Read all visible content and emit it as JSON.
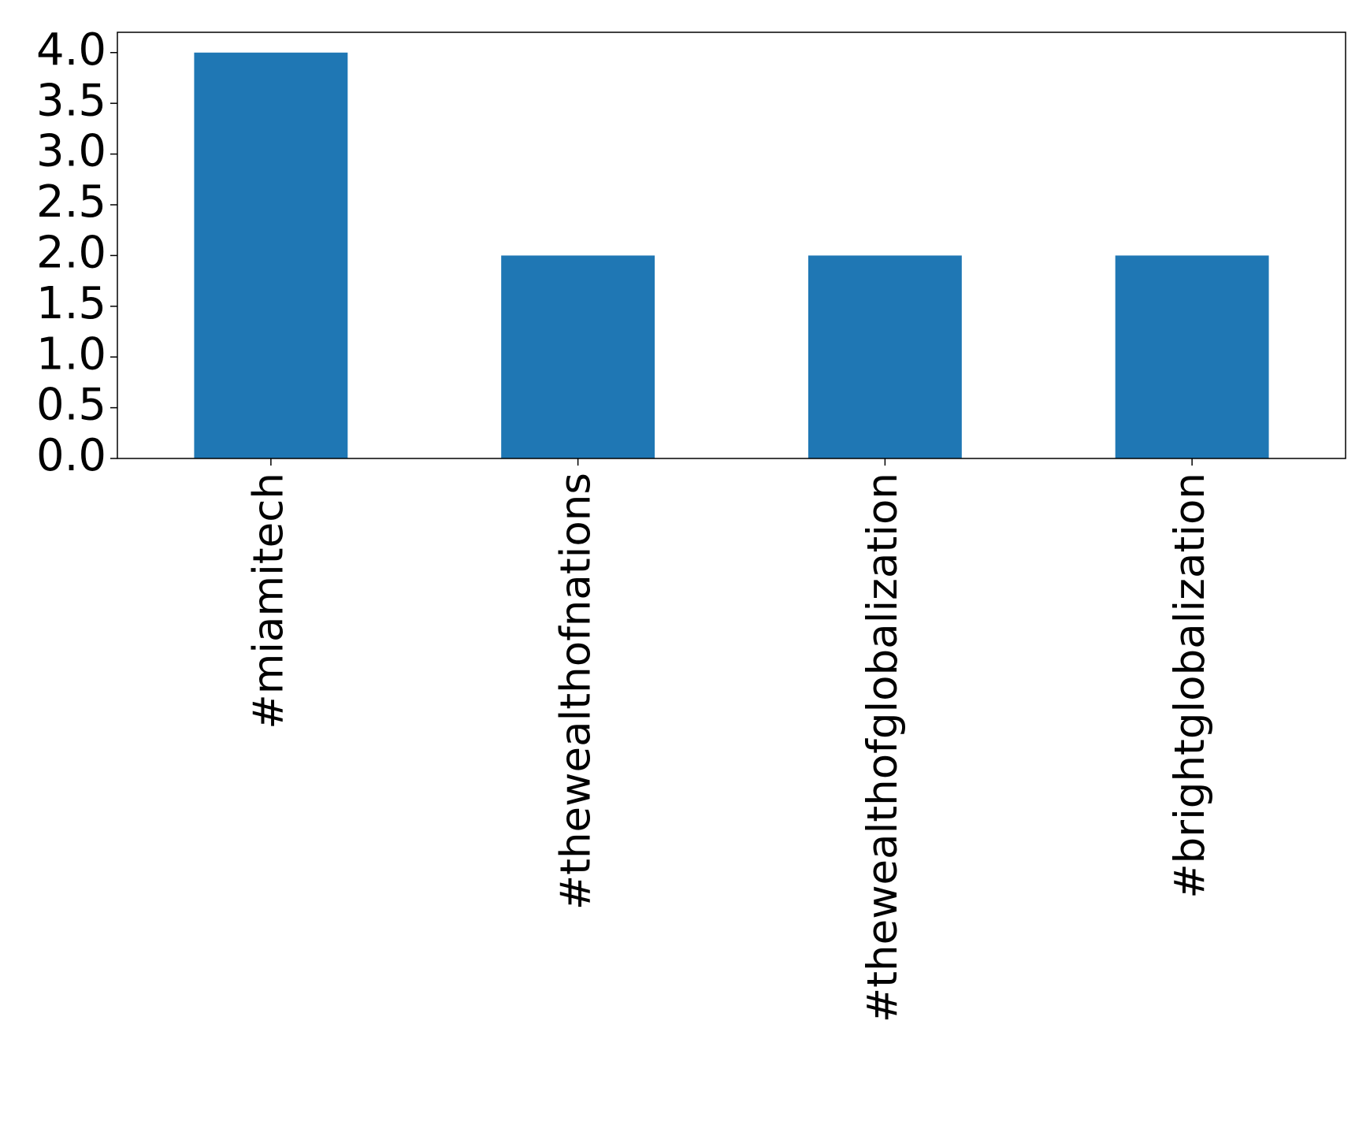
{
  "chart_data": {
    "type": "bar",
    "categories": [
      "#miamitech",
      "#thewealthofnations",
      "#thewealthofglobalization",
      "#brightglobalization"
    ],
    "values": [
      4,
      2,
      2,
      2
    ],
    "color": "#1f77b4",
    "ylim": [
      0,
      4.2
    ],
    "yticks": [
      {
        "value": 0,
        "label": "0.0"
      },
      {
        "value": 0.5,
        "label": "0.5"
      },
      {
        "value": 1,
        "label": "1.0"
      },
      {
        "value": 1.5,
        "label": "1.5"
      },
      {
        "value": 2,
        "label": "2.0"
      },
      {
        "value": 2.5,
        "label": "2.5"
      },
      {
        "value": 3,
        "label": "3.0"
      },
      {
        "value": 3.5,
        "label": "3.5"
      },
      {
        "value": 4,
        "label": "4.0"
      }
    ],
    "grid": false
  }
}
